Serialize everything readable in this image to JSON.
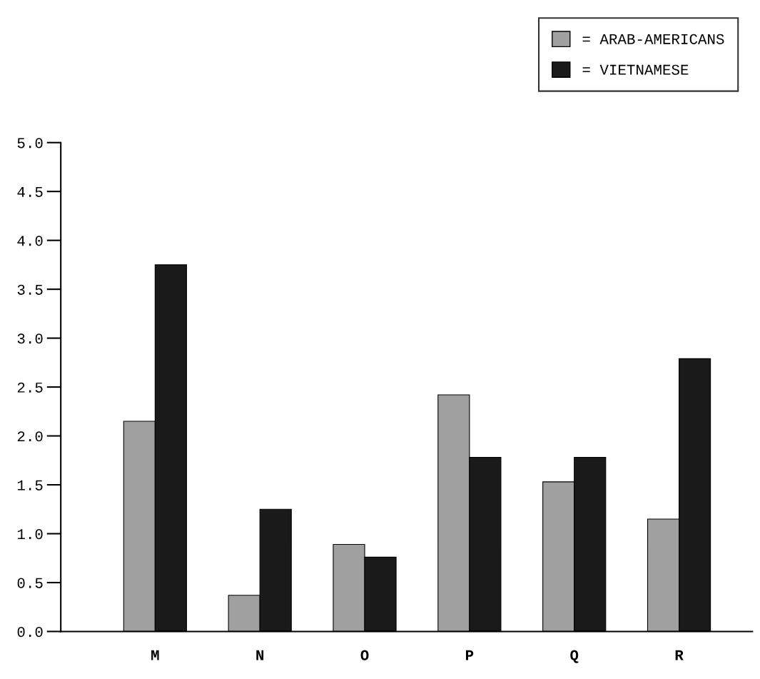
{
  "chart_data": {
    "type": "bar",
    "categories": [
      "M",
      "N",
      "O",
      "P",
      "Q",
      "R"
    ],
    "series": [
      {
        "name": "= ARAB-AMERICANS",
        "color": "#a0a0a0",
        "values": [
          2.15,
          0.37,
          0.89,
          2.42,
          1.53,
          1.15
        ]
      },
      {
        "name": "= VIETNAMESE",
        "color": "#1a1a1a",
        "values": [
          3.75,
          1.25,
          0.76,
          1.78,
          1.78,
          2.79
        ]
      }
    ],
    "ylim": [
      0,
      5.0
    ],
    "yticks": [
      {
        "value": 0,
        "label": "0.0"
      },
      {
        "value": 0.5,
        "label": "0.5"
      },
      {
        "value": 1.0,
        "label": "1.0"
      },
      {
        "value": 1.5,
        "label": "1.5"
      },
      {
        "value": 2.0,
        "label": "2.0"
      },
      {
        "value": 2.5,
        "label": "2.5"
      },
      {
        "value": 3.0,
        "label": "3.0"
      },
      {
        "value": 3.5,
        "label": "3.5"
      },
      {
        "value": 4.0,
        "label": "4.0"
      },
      {
        "value": 4.5,
        "label": "4.5"
      },
      {
        "value": 5.0,
        "label": "5.0"
      }
    ],
    "grid": false,
    "legend": "top right"
  }
}
